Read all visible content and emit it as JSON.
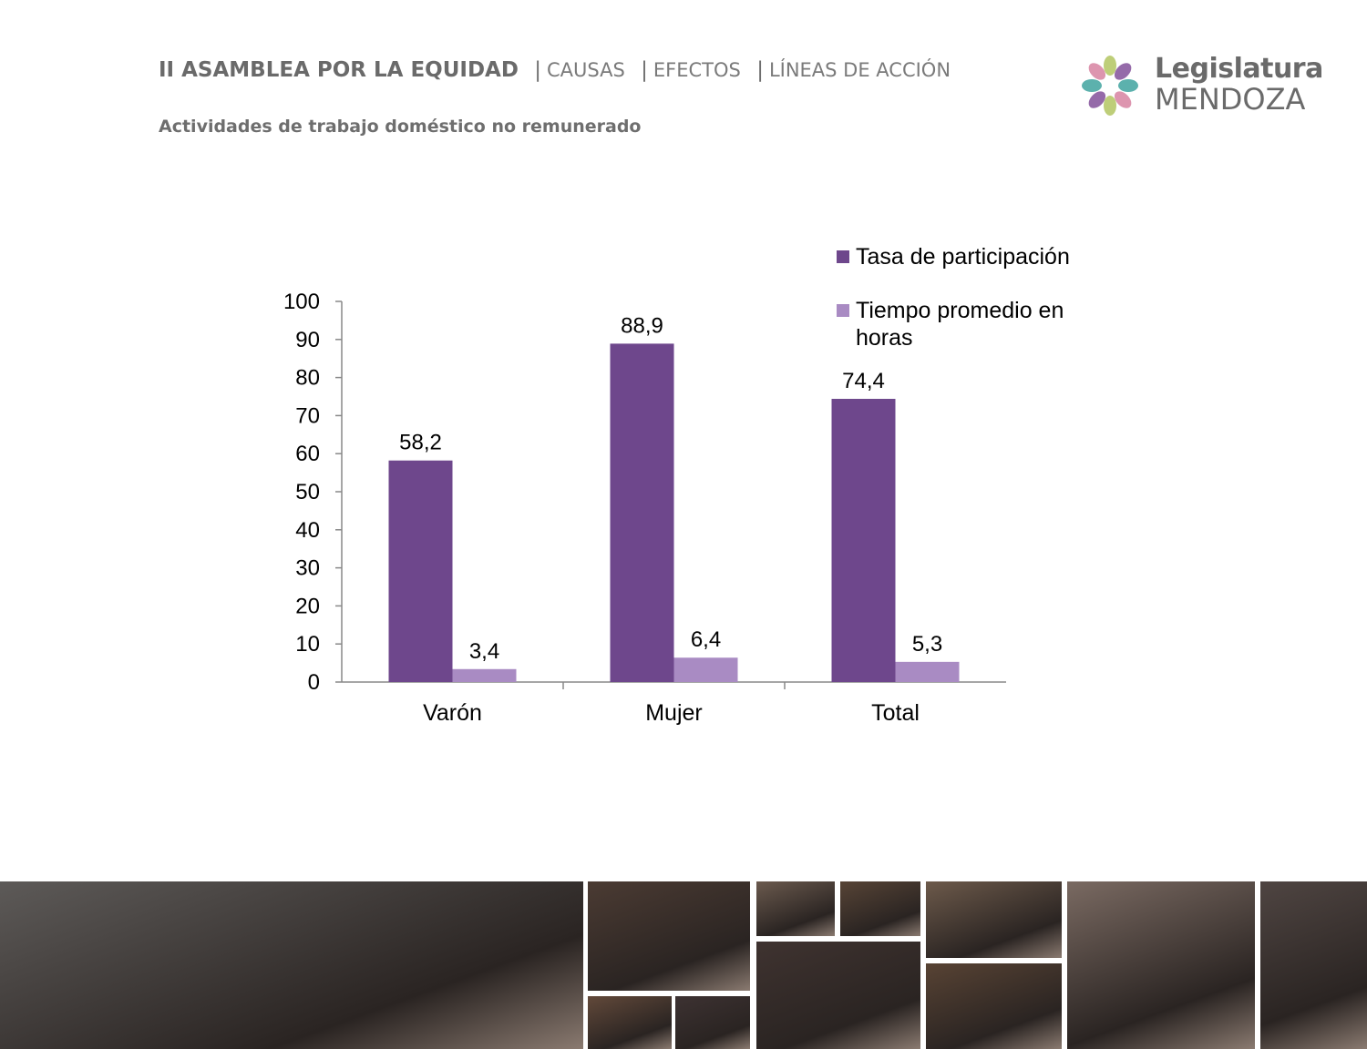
{
  "header": {
    "title": "II ASAMBLEA POR LA EQUIDAD",
    "sep": "|",
    "links": [
      "CAUSAS",
      "EFECTOS",
      "LÍNEAS DE ACCIÓN"
    ],
    "subtitle": "Actividades de trabajo doméstico no remunerado"
  },
  "logo": {
    "line1": "Legislatura",
    "line2": "MENDOZA",
    "colors": [
      "#4aa8a4",
      "#d98aa6",
      "#b7c96a",
      "#8a5aa0"
    ]
  },
  "chart_data": {
    "type": "bar",
    "categories": [
      "Varón",
      "Mujer",
      "Total"
    ],
    "series": [
      {
        "name": "Tasa de participación",
        "values": [
          58.2,
          88.9,
          74.4
        ],
        "labels": [
          "58,2",
          "88,9",
          "74,4"
        ],
        "color": "#6e478c"
      },
      {
        "name": "Tiempo promedio en horas",
        "values": [
          3.4,
          6.4,
          5.3
        ],
        "labels": [
          "3,4",
          "6,4",
          "5,3"
        ],
        "color": "#a98bc3"
      }
    ],
    "ylim": [
      0,
      100
    ],
    "yticks": [
      "0",
      "10",
      "20",
      "30",
      "40",
      "50",
      "60",
      "70",
      "80",
      "90",
      "100"
    ],
    "legend_lines": [
      [
        "Tasa de participación"
      ],
      [
        "Tiempo promedio en",
        "horas"
      ]
    ],
    "legend_position": "top-right",
    "grid": false
  },
  "photos": [
    {
      "name": "group-photo",
      "color": "#5d5a58"
    },
    {
      "name": "speaker-photo-1",
      "color": "#4b3b33"
    },
    {
      "name": "session-photo-1",
      "color": "#6b5a4e"
    },
    {
      "name": "session-photo-2",
      "color": "#574436"
    },
    {
      "name": "session-photo-3",
      "color": "#3f3330"
    },
    {
      "name": "session-photo-4",
      "color": "#62493a"
    },
    {
      "name": "speaker-photo-2",
      "color": "#3d3232"
    },
    {
      "name": "session-photo-5",
      "color": "#6d5a4b"
    },
    {
      "name": "session-photo-6",
      "color": "#584334"
    },
    {
      "name": "speaker-photo-3",
      "color": "#7a6a62"
    },
    {
      "name": "speaker-photo-4",
      "color": "#4f4542"
    }
  ]
}
